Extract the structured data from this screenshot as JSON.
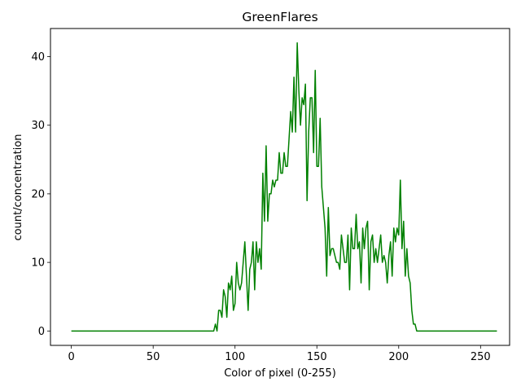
{
  "chart_data": {
    "type": "line",
    "title": "GreenFlares",
    "xlabel": "Color of pixel (0-255)",
    "ylabel": "count/concentration",
    "xlim": [
      -12.75,
      267.75
    ],
    "ylim": [
      -2.1,
      44.1
    ],
    "xticks": [
      0,
      50,
      100,
      150,
      200,
      250
    ],
    "yticks": [
      0,
      10,
      20,
      30,
      40
    ],
    "grid": false,
    "legend": "none",
    "series": [
      {
        "color": "#008000",
        "x_start": 0,
        "x_step": 1,
        "values": [
          0,
          0,
          0,
          0,
          0,
          0,
          0,
          0,
          0,
          0,
          0,
          0,
          0,
          0,
          0,
          0,
          0,
          0,
          0,
          0,
          0,
          0,
          0,
          0,
          0,
          0,
          0,
          0,
          0,
          0,
          0,
          0,
          0,
          0,
          0,
          0,
          0,
          0,
          0,
          0,
          0,
          0,
          0,
          0,
          0,
          0,
          0,
          0,
          0,
          0,
          0,
          0,
          0,
          0,
          0,
          0,
          0,
          0,
          0,
          0,
          0,
          0,
          0,
          0,
          0,
          0,
          0,
          0,
          0,
          0,
          0,
          0,
          0,
          0,
          0,
          0,
          0,
          0,
          0,
          0,
          0,
          0,
          0,
          0,
          0,
          0,
          0,
          0,
          1,
          0,
          3,
          3,
          2,
          6,
          5,
          2,
          7,
          6,
          8,
          3,
          4,
          10,
          7,
          6,
          7,
          10,
          13,
          8,
          3,
          9,
          10,
          13,
          6,
          13,
          10,
          12,
          9,
          23,
          16,
          27,
          16,
          20,
          20,
          22,
          21,
          22,
          22,
          26,
          23,
          23,
          26,
          24,
          24,
          28,
          32,
          29,
          37,
          29,
          42,
          35,
          30,
          34,
          33,
          36,
          19,
          29,
          34,
          34,
          26,
          38,
          24,
          24,
          31,
          21,
          18,
          15,
          8,
          18,
          11,
          12,
          12,
          11,
          10,
          10,
          9,
          14,
          12,
          10,
          10,
          14,
          6,
          15,
          12,
          12,
          17,
          12,
          13,
          7,
          15,
          12,
          15,
          16,
          6,
          13,
          14,
          10,
          12,
          10,
          12,
          14,
          10,
          11,
          10,
          7,
          11,
          13,
          8,
          15,
          13,
          15,
          14,
          22,
          12,
          16,
          8,
          12,
          8,
          7,
          3,
          1,
          1,
          0,
          0,
          0,
          0,
          0,
          0,
          0,
          0,
          0,
          0,
          0,
          0,
          0,
          0,
          0,
          0,
          0,
          0,
          0,
          0,
          0,
          0,
          0,
          0,
          0,
          0,
          0,
          0,
          0,
          0,
          0,
          0,
          0,
          0,
          0,
          0,
          0,
          0,
          0,
          0,
          0,
          0,
          0,
          0,
          0,
          0,
          0,
          0,
          0,
          0
        ]
      }
    ]
  }
}
